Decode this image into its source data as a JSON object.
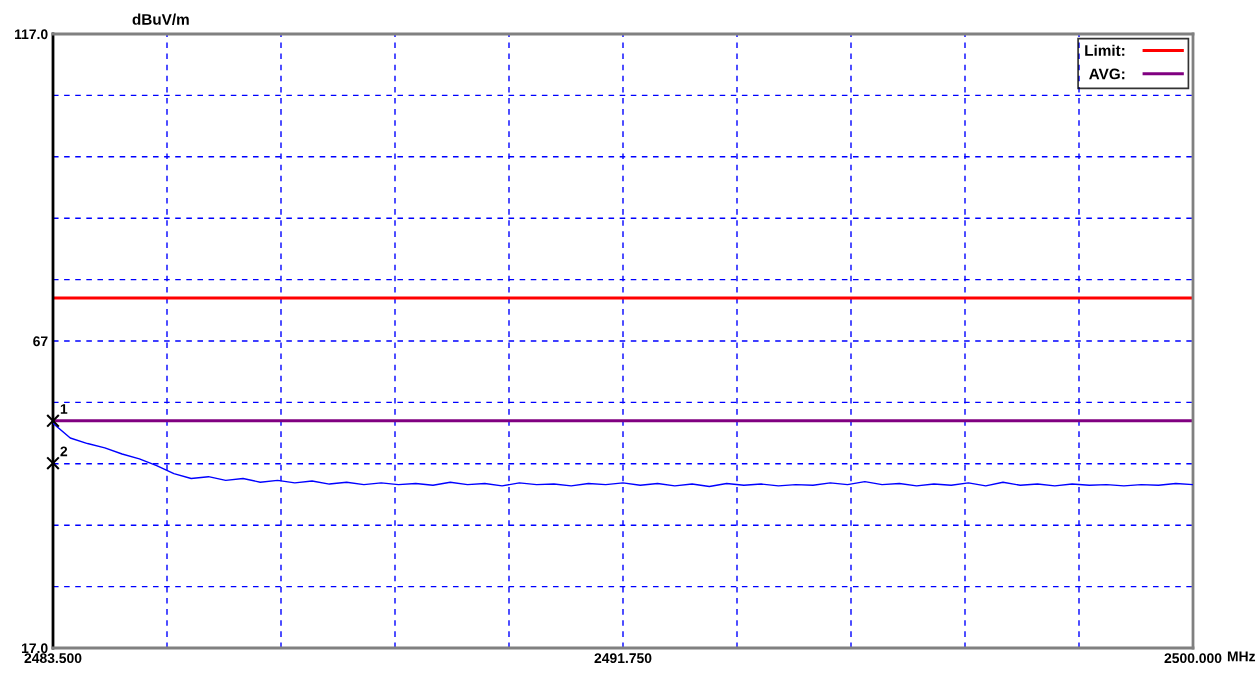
{
  "chart_data": {
    "type": "line",
    "xlabel": "MHz",
    "ylabel": "dBuV/m",
    "xlim": [
      2483.5,
      2500.0
    ],
    "ylim": [
      17,
      117
    ],
    "xticks": [
      {
        "value": 2483.5,
        "label": "2483.500"
      },
      {
        "value": 2485.15,
        "label": null
      },
      {
        "value": 2486.8,
        "label": null
      },
      {
        "value": 2488.45,
        "label": null
      },
      {
        "value": 2490.1,
        "label": null
      },
      {
        "value": 2491.75,
        "label": "2491.750"
      },
      {
        "value": 2493.4,
        "label": null
      },
      {
        "value": 2495.05,
        "label": null
      },
      {
        "value": 2496.7,
        "label": null
      },
      {
        "value": 2498.35,
        "label": null
      },
      {
        "value": 2500.0,
        "label": "2500.000"
      }
    ],
    "yticks": [
      {
        "value": 17,
        "label": "17.0"
      },
      {
        "value": 27,
        "label": null
      },
      {
        "value": 37,
        "label": null
      },
      {
        "value": 47,
        "label": null
      },
      {
        "value": 57,
        "label": null
      },
      67,
      {
        "value": 77,
        "label": null
      },
      {
        "value": 87,
        "label": null
      },
      {
        "value": 97,
        "label": null
      },
      {
        "value": 107,
        "label": null
      },
      {
        "value": 117,
        "label": "117.0"
      }
    ],
    "grid": true,
    "legend": "top right",
    "series": [
      {
        "color": "#0000ff",
        "x": [
          2483.5,
          2483.75,
          2484.0,
          2484.25,
          2484.5,
          2484.75,
          2485.0,
          2485.25,
          2485.5,
          2485.75,
          2486.0,
          2486.25,
          2486.5,
          2486.75,
          2487.0,
          2487.25,
          2487.5,
          2487.75,
          2488.0,
          2488.25,
          2488.5,
          2488.75,
          2489.0,
          2489.25,
          2489.5,
          2489.75,
          2490.0,
          2490.25,
          2490.5,
          2490.75,
          2491.0,
          2491.25,
          2491.5,
          2491.75,
          2492.0,
          2492.25,
          2492.5,
          2492.75,
          2493.0,
          2493.25,
          2493.5,
          2493.75,
          2494.0,
          2494.25,
          2494.5,
          2494.75,
          2495.0,
          2495.25,
          2495.5,
          2495.75,
          2496.0,
          2496.25,
          2496.5,
          2496.75,
          2497.0,
          2497.25,
          2497.5,
          2497.75,
          2498.0,
          2498.25,
          2498.5,
          2498.75,
          2499.0,
          2499.25,
          2499.5,
          2499.75,
          2500.0
        ],
        "values": [
          53.6,
          51.2,
          50.3,
          49.6,
          48.6,
          47.8,
          46.7,
          45.4,
          44.6,
          44.9,
          44.3,
          44.6,
          44.0,
          44.3,
          43.9,
          44.2,
          43.7,
          44.0,
          43.6,
          43.9,
          43.6,
          43.8,
          43.5,
          44.0,
          43.6,
          43.8,
          43.4,
          43.9,
          43.6,
          43.7,
          43.4,
          43.8,
          43.6,
          43.9,
          43.5,
          43.8,
          43.4,
          43.7,
          43.3,
          43.8,
          43.5,
          43.7,
          43.4,
          43.6,
          43.5,
          43.9,
          43.6,
          44.1,
          43.6,
          43.8,
          43.4,
          43.7,
          43.5,
          43.9,
          43.4,
          44.0,
          43.5,
          43.7,
          43.4,
          43.7,
          43.5,
          43.6,
          43.4,
          43.6,
          43.5,
          43.8,
          43.6
        ]
      },
      {
        "type": "scatter",
        "marker": "cross",
        "color": "#000000",
        "x": [
          2483.5,
          2483.5
        ],
        "values": [
          54,
          47.1
        ]
      }
    ],
    "ref_lines": [
      {
        "axis": "y",
        "value": 74,
        "label": "Limit:",
        "color": "#ff0000"
      },
      {
        "axis": "y",
        "value": 54,
        "label": "AVG:",
        "color": "#800080"
      }
    ],
    "annotations": [
      {
        "text": "1",
        "x": 2483.5,
        "y": 54
      },
      {
        "text": "2",
        "x": 2483.5,
        "y": 47.1
      }
    ]
  }
}
